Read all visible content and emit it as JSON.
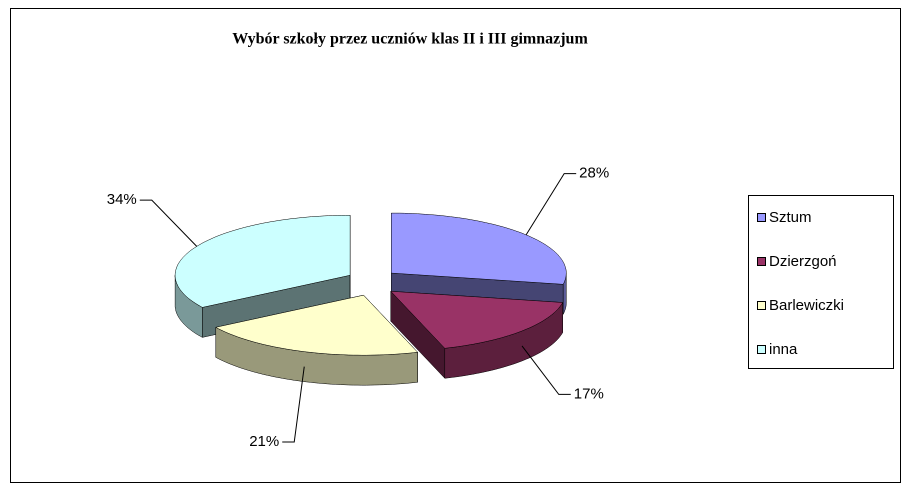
{
  "chart_data": {
    "type": "pie3d",
    "title": "Wybór szkoły przez uczniów klas II i III gimnazjum",
    "categories": [
      "Sztum",
      "Dzierzgoń",
      "Barlewiczki",
      "inna"
    ],
    "values": [
      28,
      17,
      21,
      34
    ],
    "value_labels": [
      "28%",
      "17%",
      "21%",
      "34%"
    ],
    "colors": [
      "#9999ff",
      "#993366",
      "#ffffcc",
      "#ccffff"
    ],
    "legend": "right"
  }
}
